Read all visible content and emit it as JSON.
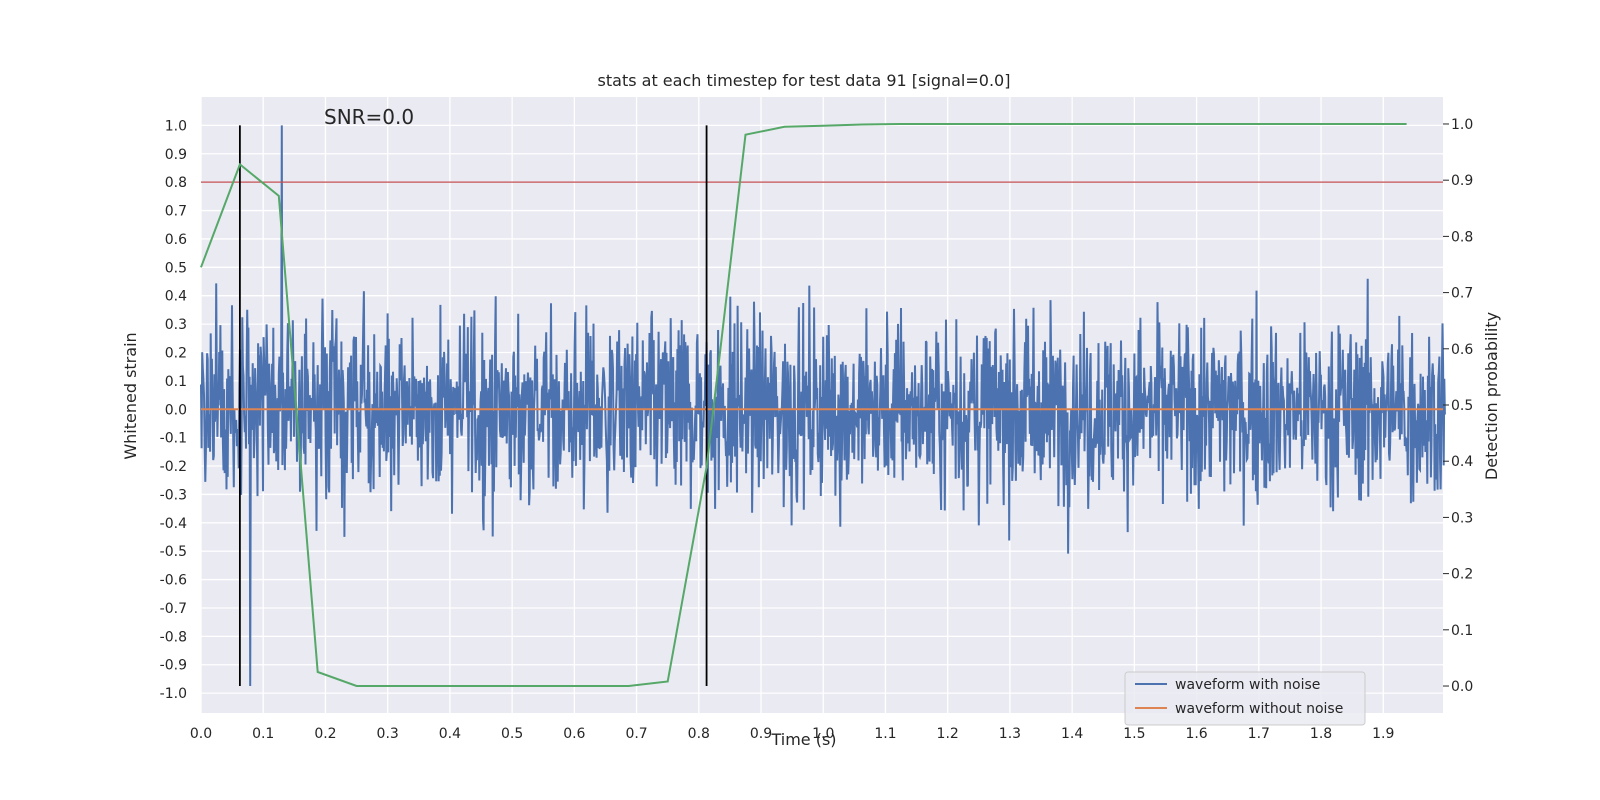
{
  "chart_data": {
    "type": "line",
    "title": "stats at each timestep for test data 91 [signal=0.0]",
    "xlabel": "Time (s)",
    "ylabel": "Whitened strain",
    "y2label": "Detection probability",
    "annotation": "SNR=0.0",
    "xlim": [
      0.0,
      1.996
    ],
    "ylim": [
      -1.07,
      1.1
    ],
    "y2lim": [
      -0.048,
      1.048
    ],
    "xticks": [
      "0.0",
      "0.1",
      "0.2",
      "0.3",
      "0.4",
      "0.5",
      "0.6",
      "0.7",
      "0.8",
      "0.9",
      "1.0",
      "1.1",
      "1.2",
      "1.3",
      "1.4",
      "1.5",
      "1.6",
      "1.7",
      "1.8",
      "1.9"
    ],
    "yticks": [
      "1.0",
      "0.9",
      "0.8",
      "0.7",
      "0.6",
      "0.5",
      "0.4",
      "0.3",
      "0.2",
      "0.1",
      "0.0",
      "-0.1",
      "-0.2",
      "-0.3",
      "-0.4",
      "-0.5",
      "-0.6",
      "-0.7",
      "-0.8",
      "-0.9",
      "-1.0"
    ],
    "y2ticks": [
      "1.0",
      "0.9",
      "0.8",
      "0.7",
      "0.6",
      "0.5",
      "0.4",
      "0.3",
      "0.2",
      "0.1",
      "0.0"
    ],
    "threshold": {
      "y": 0.8,
      "color": "#c44e52"
    },
    "vertical_markers": [
      {
        "x": 0.0625,
        "ymin": -0.975,
        "ymax": 1.0
      },
      {
        "x": 0.8125,
        "ymin": -0.975,
        "ymax": 1.0
      }
    ],
    "series": [
      {
        "name": "waveform with noise",
        "color": "#4c72b0",
        "axis": "left",
        "kind": "noise",
        "n_samples": 2048,
        "peak_max": 1.0,
        "peak_min": -0.975
      },
      {
        "name": "waveform without noise",
        "color": "#dd8452",
        "axis": "left",
        "kind": "constant",
        "value": 0.0
      },
      {
        "name": "detection probability",
        "color": "#55a868",
        "axis": "right",
        "kind": "line",
        "x": [
          0.0,
          0.0625,
          0.125,
          0.1875,
          0.25,
          0.3125,
          0.375,
          0.4375,
          0.5,
          0.5625,
          0.625,
          0.6875,
          0.75,
          0.8125,
          0.875,
          0.9375,
          1.0,
          1.0625,
          1.125,
          1.1875,
          1.25,
          1.3125,
          1.375,
          1.4375,
          1.5,
          1.5625,
          1.625,
          1.6875,
          1.75,
          1.8125,
          1.875,
          1.9375
        ],
        "y": [
          0.745,
          0.928,
          0.872,
          0.025,
          0.0,
          0.0,
          0.0,
          0.0,
          0.0,
          0.0,
          0.0,
          0.0,
          0.008,
          0.39,
          0.981,
          0.995,
          0.997,
          0.999,
          1.0,
          1.0,
          1.0,
          1.0,
          1.0,
          1.0,
          1.0,
          1.0,
          1.0,
          1.0,
          1.0,
          1.0,
          1.0,
          1.0
        ]
      }
    ],
    "legend": {
      "location": "lower-right",
      "entries": [
        "waveform with noise",
        "waveform without noise"
      ]
    }
  }
}
